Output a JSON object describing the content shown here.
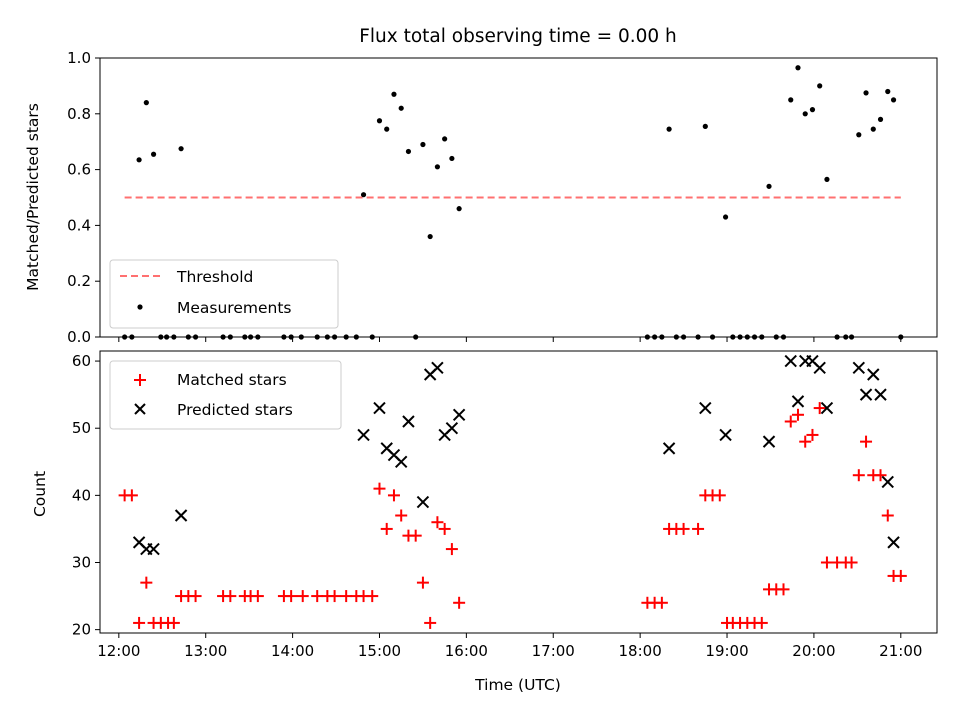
{
  "chart_data": {
    "title": "Flux total observing time = 0.00 h",
    "xlabel": "Time (UTC)",
    "x_ticks": [
      "12:00",
      "13:00",
      "14:00",
      "15:00",
      "16:00",
      "17:00",
      "18:00",
      "19:00",
      "20:00",
      "21:00"
    ],
    "xlim": [
      "11:47",
      "21:25"
    ],
    "panels": [
      {
        "type": "scatter",
        "ylabel": "Matched/Predicted stars",
        "ylim": [
          0,
          1.0
        ],
        "y_ticks": [
          "0.0",
          "0.2",
          "0.4",
          "0.6",
          "0.8",
          "1.0"
        ],
        "legend_position": "lower-left",
        "threshold": {
          "name": "Threshold",
          "value": 0.5,
          "x_start": "12:04",
          "x_end": "21:00",
          "color": "#ff7070"
        },
        "series": [
          {
            "name": "Measurements",
            "color": "#000000",
            "points": [
              [
                "12:04",
                0
              ],
              [
                "12:09",
                0
              ],
              [
                "12:14",
                0.635
              ],
              [
                "12:19",
                0.84
              ],
              [
                "12:24",
                0.655
              ],
              [
                "12:29",
                0
              ],
              [
                "12:33",
                0
              ],
              [
                "12:38",
                0
              ],
              [
                "12:43",
                0.675
              ],
              [
                "12:48",
                0
              ],
              [
                "12:53",
                0
              ],
              [
                "13:12",
                0
              ],
              [
                "13:17",
                0
              ],
              [
                "13:27",
                0
              ],
              [
                "13:31",
                0
              ],
              [
                "13:36",
                0
              ],
              [
                "13:54",
                0
              ],
              [
                "13:59",
                0
              ],
              [
                "14:06",
                0
              ],
              [
                "14:17",
                0
              ],
              [
                "14:24",
                0
              ],
              [
                "14:29",
                0
              ],
              [
                "14:37",
                0
              ],
              [
                "14:44",
                0
              ],
              [
                "14:49",
                0.51
              ],
              [
                "14:55",
                0
              ],
              [
                "15:00",
                0.775
              ],
              [
                "15:05",
                0.745
              ],
              [
                "15:10",
                0.87
              ],
              [
                "15:15",
                0.82
              ],
              [
                "15:20",
                0.665
              ],
              [
                "15:25",
                0
              ],
              [
                "15:30",
                0.69
              ],
              [
                "15:35",
                0.36
              ],
              [
                "15:40",
                0.61
              ],
              [
                "15:45",
                0.71
              ],
              [
                "15:50",
                0.64
              ],
              [
                "15:55",
                0.46
              ],
              [
                "18:05",
                0
              ],
              [
                "18:10",
                0
              ],
              [
                "18:15",
                0
              ],
              [
                "18:20",
                0.745
              ],
              [
                "18:25",
                0
              ],
              [
                "18:30",
                0
              ],
              [
                "18:40",
                0
              ],
              [
                "18:45",
                0.755
              ],
              [
                "18:50",
                0
              ],
              [
                "18:59",
                0.43
              ],
              [
                "19:04",
                0
              ],
              [
                "19:09",
                0
              ],
              [
                "19:14",
                0
              ],
              [
                "19:19",
                0
              ],
              [
                "19:24",
                0
              ],
              [
                "19:29",
                0.54
              ],
              [
                "19:34",
                0
              ],
              [
                "19:39",
                0
              ],
              [
                "19:44",
                0.85
              ],
              [
                "19:49",
                0.965
              ],
              [
                "19:54",
                0.8
              ],
              [
                "19:59",
                0.815
              ],
              [
                "20:04",
                0.9
              ],
              [
                "20:09",
                0.565
              ],
              [
                "20:16",
                0
              ],
              [
                "20:22",
                0
              ],
              [
                "20:26",
                0
              ],
              [
                "20:31",
                0.725
              ],
              [
                "20:36",
                0.875
              ],
              [
                "20:41",
                0.745
              ],
              [
                "20:46",
                0.78
              ],
              [
                "20:51",
                0.88
              ],
              [
                "20:55",
                0.85
              ],
              [
                "21:00",
                0
              ]
            ]
          }
        ]
      },
      {
        "type": "scatter",
        "ylabel": "Count",
        "ylim": [
          19.5,
          61.5
        ],
        "y_ticks": [
          "20",
          "30",
          "40",
          "50",
          "60"
        ],
        "legend_position": "top-left",
        "series": [
          {
            "name": "Matched stars",
            "marker": "plus",
            "color": "#ff0000",
            "points": [
              [
                "12:04",
                40
              ],
              [
                "12:09",
                40
              ],
              [
                "12:14",
                21
              ],
              [
                "12:19",
                27
              ],
              [
                "12:24",
                21
              ],
              [
                "12:29",
                21
              ],
              [
                "12:34",
                21
              ],
              [
                "12:38",
                21
              ],
              [
                "12:43",
                25
              ],
              [
                "12:48",
                25
              ],
              [
                "12:53",
                25
              ],
              [
                "13:12",
                25
              ],
              [
                "13:17",
                25
              ],
              [
                "13:27",
                25
              ],
              [
                "13:31",
                25
              ],
              [
                "13:36",
                25
              ],
              [
                "13:54",
                25
              ],
              [
                "13:59",
                25
              ],
              [
                "14:07",
                25
              ],
              [
                "14:17",
                25
              ],
              [
                "14:24",
                25
              ],
              [
                "14:29",
                25
              ],
              [
                "14:37",
                25
              ],
              [
                "14:44",
                25
              ],
              [
                "14:49",
                25
              ],
              [
                "14:55",
                25
              ],
              [
                "15:00",
                41
              ],
              [
                "15:05",
                35
              ],
              [
                "15:10",
                40
              ],
              [
                "15:15",
                37
              ],
              [
                "15:20",
                34
              ],
              [
                "15:25",
                34
              ],
              [
                "15:30",
                27
              ],
              [
                "15:35",
                21
              ],
              [
                "15:40",
                36
              ],
              [
                "15:45",
                35
              ],
              [
                "15:50",
                32
              ],
              [
                "15:55",
                24
              ],
              [
                "18:05",
                24
              ],
              [
                "18:10",
                24
              ],
              [
                "18:15",
                24
              ],
              [
                "18:20",
                35
              ],
              [
                "18:25",
                35
              ],
              [
                "18:30",
                35
              ],
              [
                "18:40",
                35
              ],
              [
                "18:45",
                40
              ],
              [
                "18:50",
                40
              ],
              [
                "18:55",
                40
              ],
              [
                "19:00",
                21
              ],
              [
                "19:04",
                21
              ],
              [
                "19:09",
                21
              ],
              [
                "19:14",
                21
              ],
              [
                "19:19",
                21
              ],
              [
                "19:24",
                21
              ],
              [
                "19:29",
                26
              ],
              [
                "19:34",
                26
              ],
              [
                "19:39",
                26
              ],
              [
                "19:44",
                51
              ],
              [
                "19:49",
                52
              ],
              [
                "19:54",
                48
              ],
              [
                "19:59",
                49
              ],
              [
                "20:04",
                53
              ],
              [
                "20:09",
                30
              ],
              [
                "20:16",
                30
              ],
              [
                "20:22",
                30
              ],
              [
                "20:26",
                30
              ],
              [
                "20:31",
                43
              ],
              [
                "20:36",
                48
              ],
              [
                "20:41",
                43
              ],
              [
                "20:46",
                43
              ],
              [
                "20:51",
                37
              ],
              [
                "20:55",
                28
              ],
              [
                "21:00",
                28
              ]
            ]
          },
          {
            "name": "Predicted stars",
            "marker": "x",
            "color": "#000000",
            "points": [
              [
                "12:14",
                33
              ],
              [
                "12:19",
                32
              ],
              [
                "12:24",
                32
              ],
              [
                "12:43",
                37
              ],
              [
                "14:49",
                49
              ],
              [
                "15:00",
                53
              ],
              [
                "15:05",
                47
              ],
              [
                "15:10",
                46
              ],
              [
                "15:15",
                45
              ],
              [
                "15:20",
                51
              ],
              [
                "15:30",
                39
              ],
              [
                "15:35",
                58
              ],
              [
                "15:40",
                59
              ],
              [
                "15:45",
                49
              ],
              [
                "15:50",
                50
              ],
              [
                "15:55",
                52
              ],
              [
                "18:20",
                47
              ],
              [
                "18:45",
                53
              ],
              [
                "18:59",
                49
              ],
              [
                "19:29",
                48
              ],
              [
                "19:44",
                60
              ],
              [
                "19:49",
                54
              ],
              [
                "19:54",
                60
              ],
              [
                "19:59",
                60
              ],
              [
                "20:04",
                59
              ],
              [
                "20:09",
                53
              ],
              [
                "20:31",
                59
              ],
              [
                "20:36",
                55
              ],
              [
                "20:41",
                58
              ],
              [
                "20:46",
                55
              ],
              [
                "20:51",
                42
              ],
              [
                "20:55",
                33
              ]
            ]
          }
        ]
      }
    ]
  }
}
